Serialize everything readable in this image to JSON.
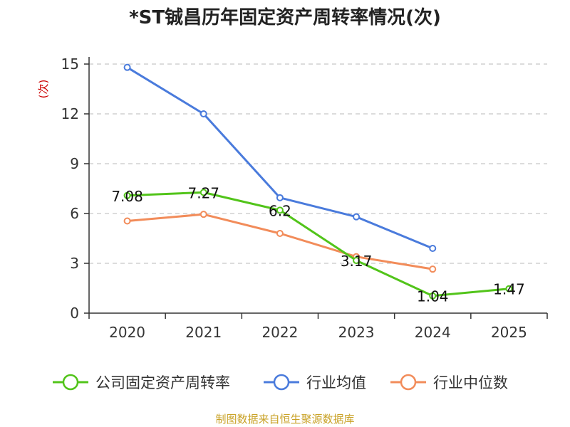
{
  "chart_data": {
    "type": "line",
    "title": "*ST铖昌历年固定资产周转率情况(次)",
    "ylabel": "(次)",
    "categories": [
      "2020",
      "2021",
      "2022",
      "2023",
      "2024",
      "2025"
    ],
    "yticks": [
      0,
      3,
      6,
      9,
      12,
      15
    ],
    "ylim": [
      0,
      15
    ],
    "grid": true,
    "legend_position": "bottom",
    "series": [
      {
        "name": "公司固定资产周转率",
        "color": "#52c41a",
        "values": [
          7.08,
          7.27,
          6.2,
          3.17,
          1.04,
          1.47
        ],
        "labels": [
          "7.08",
          "7.27",
          "6.2",
          "3.17",
          "1.04",
          "1.47"
        ],
        "show_labels": true
      },
      {
        "name": "行业均值",
        "color": "#4a7bdc",
        "values": [
          14.8,
          12.0,
          6.95,
          5.8,
          3.9,
          null
        ],
        "show_labels": false
      },
      {
        "name": "行业中位数",
        "color": "#f28c5a",
        "values": [
          5.55,
          5.95,
          4.8,
          3.4,
          2.65,
          null
        ],
        "show_labels": false
      }
    ],
    "source": "制图数据来自恒生聚源数据库"
  }
}
